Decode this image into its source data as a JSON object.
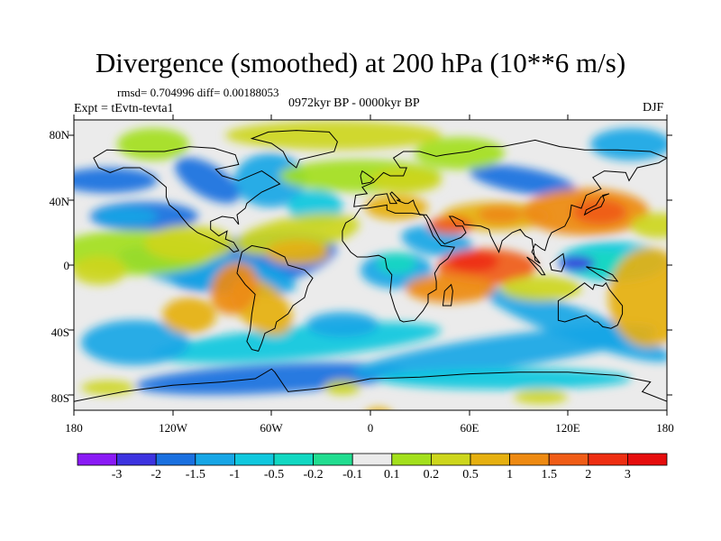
{
  "title": "Divergence (smoothed) at 200 hPa (10**6 m/s)",
  "stats_line": "rmsd= 0.704996 diff= 0.00188053",
  "experiment_line": "Expt = tEvtn-tevta1",
  "period_line": "0972kyr BP - 0000kyr BP",
  "season": "DJF",
  "lat_ticks": [
    "80N",
    "40N",
    "0",
    "40S",
    "80S"
  ],
  "lon_ticks": [
    "180",
    "120W",
    "60W",
    "0",
    "60E",
    "120E",
    "180"
  ],
  "colorbar": {
    "labels": [
      "-3",
      "-2",
      "-1.5",
      "-1",
      "-0.5",
      "-0.2",
      "-0.1",
      "0.1",
      "0.2",
      "0.5",
      "1",
      "1.5",
      "2",
      "3"
    ],
    "colors": [
      "#8a1af5",
      "#3d33e0",
      "#1a70e0",
      "#17a6e6",
      "#10c8de",
      "#12d8c2",
      "#21dd90",
      "#ebebeb",
      "#a3e01c",
      "#cdd61c",
      "#e6b010",
      "#ee8a12",
      "#f05c16",
      "#ee2e12",
      "#e60d0d"
    ]
  },
  "colors": {
    "background_neutral": "#ebebeb",
    "coastline": "#000000"
  }
}
